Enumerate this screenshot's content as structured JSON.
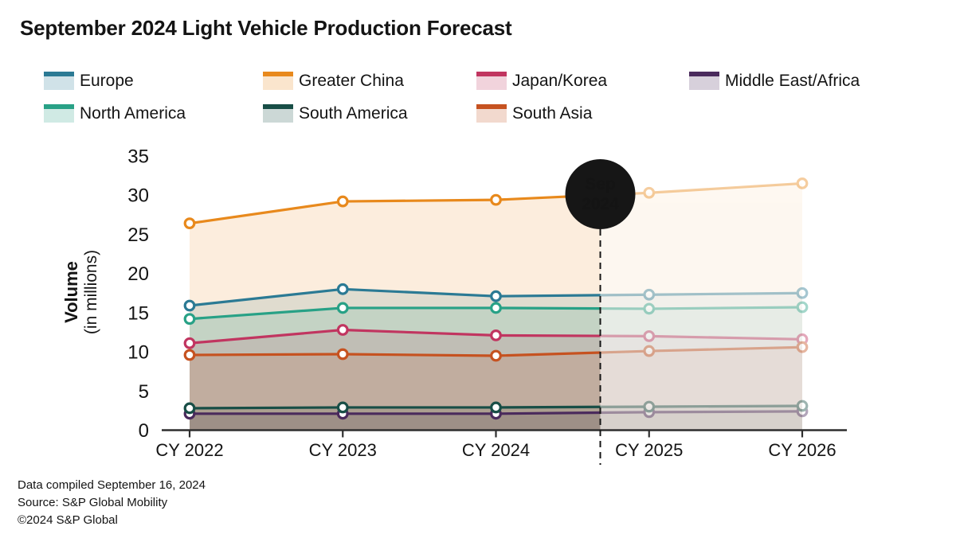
{
  "title": "September 2024 Light Vehicle Production Forecast",
  "badge": {
    "line1": "Sep",
    "line2": "2024"
  },
  "y_axis": {
    "title_line1": "Volume",
    "title_line2": "(in millions)",
    "ticks": [
      0,
      5,
      10,
      15,
      20,
      25,
      30,
      35
    ]
  },
  "footer": {
    "compiled": "Data compiled September 16, 2024",
    "source": "Source: S&P Global Mobility",
    "copyright": "©2024 S&P Global"
  },
  "chart_data": {
    "type": "area",
    "title": "September 2024 Light Vehicle Production Forecast",
    "xlabel": "",
    "ylabel": "Volume (in millions)",
    "categories": [
      "CY 2022",
      "CY 2023",
      "CY 2024",
      "CY 2025",
      "CY 2026"
    ],
    "ylim": [
      0,
      35
    ],
    "grid": false,
    "legend_position": "top",
    "forecast_divider": {
      "label": "Sep 2024",
      "position": "between CY 2024 and CY 2025"
    },
    "series": [
      {
        "name": "Europe",
        "color": "#2B7A94",
        "values": [
          15.9,
          18.0,
          17.1,
          17.3,
          17.5
        ]
      },
      {
        "name": "Greater China",
        "color": "#E8891C",
        "values": [
          26.4,
          29.2,
          29.4,
          30.3,
          31.5
        ]
      },
      {
        "name": "Japan/Korea",
        "color": "#C13560",
        "values": [
          11.1,
          12.8,
          12.1,
          12.0,
          11.6
        ]
      },
      {
        "name": "Middle East/Africa",
        "color": "#4A2A5C",
        "values": [
          2.1,
          2.1,
          2.1,
          2.3,
          2.4
        ]
      },
      {
        "name": "North America",
        "color": "#28A186",
        "values": [
          14.2,
          15.6,
          15.6,
          15.5,
          15.7
        ]
      },
      {
        "name": "South America",
        "color": "#184E46",
        "values": [
          2.8,
          2.9,
          2.9,
          3.0,
          3.1
        ]
      },
      {
        "name": "South Asia",
        "color": "#C65220",
        "values": [
          9.6,
          9.7,
          9.5,
          10.1,
          10.6
        ]
      }
    ]
  }
}
